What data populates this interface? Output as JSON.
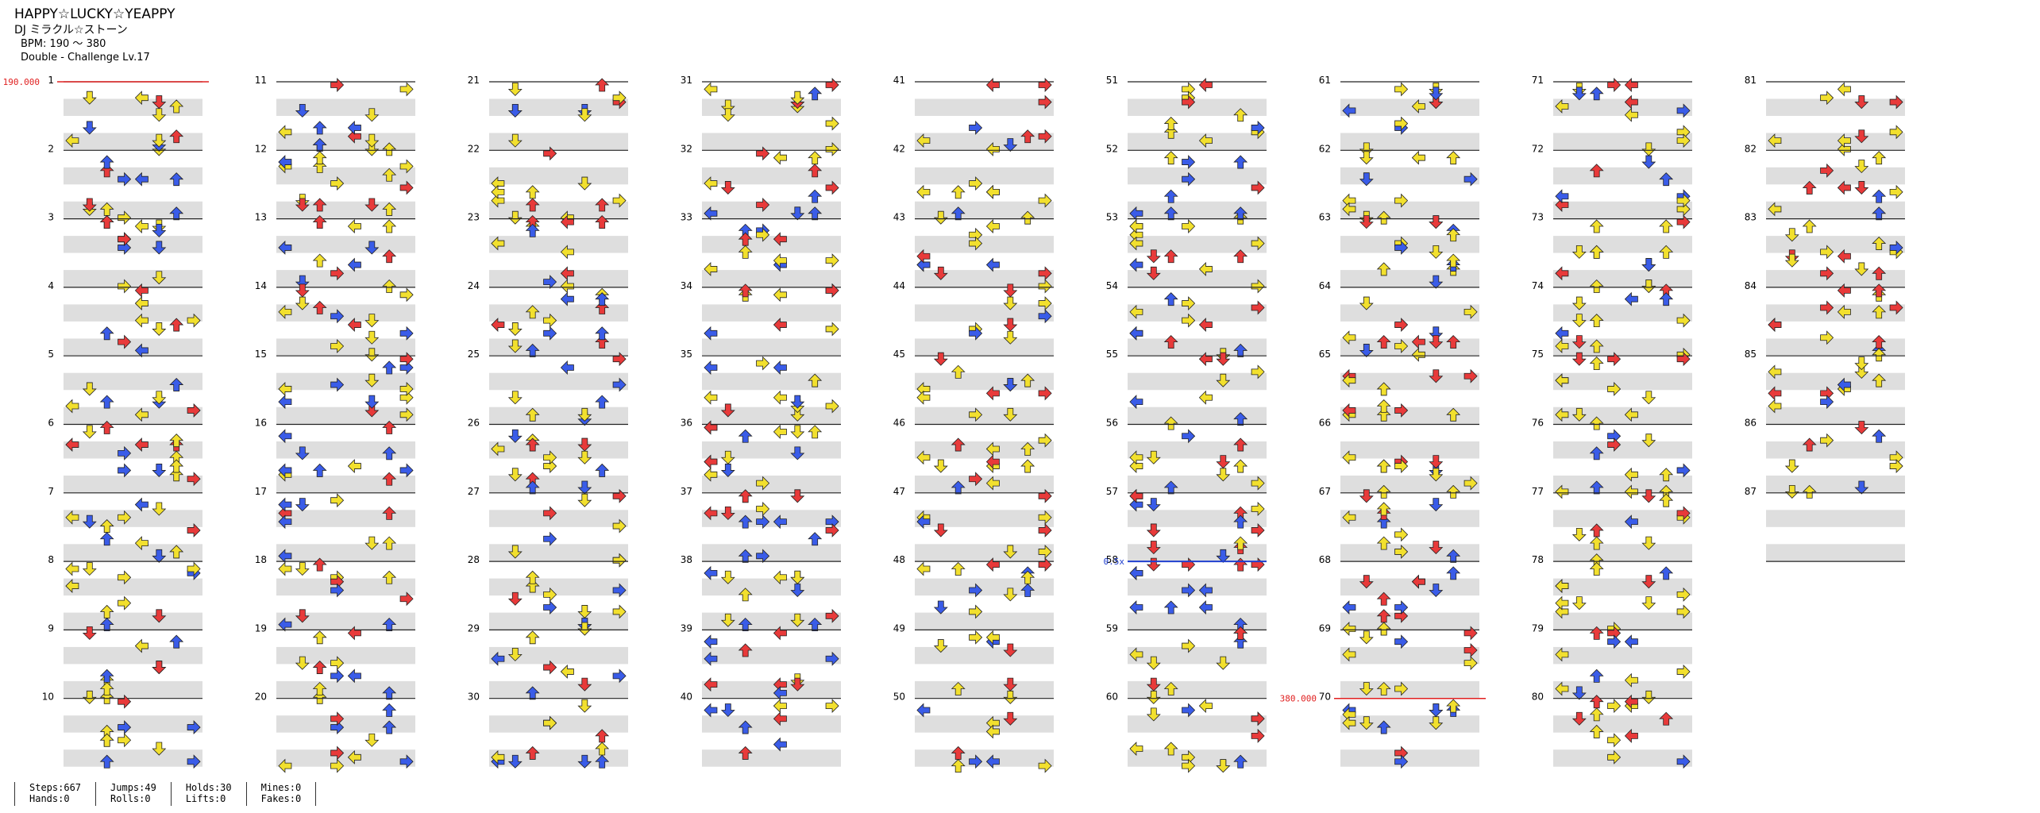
{
  "song": {
    "title": "HAPPY☆LUCKY☆YEAPPY",
    "artist": "DJ ミラクル☆ストーン",
    "bpm": "BPM: 190 ～ 380",
    "difficulty": "Double - Challenge Lv.17"
  },
  "bpm_labels": [
    "190.000",
    "380.000"
  ],
  "speed_label": "0.5x",
  "measures": {
    "first": 1,
    "last": 87,
    "per_column": 10
  },
  "colors": {
    "quarter_note": "#e83a3a",
    "eighth_note": "#3a5ce8",
    "sixteenth_note": "#f2e02e",
    "hold_body": "#7ee07e",
    "bpm_change": "#e02020",
    "speed_change": "#2040d0",
    "band": "#dedede"
  },
  "stats": {
    "groups": [
      [
        "Steps:667",
        "Hands:0"
      ],
      [
        "Jumps:49",
        "Rolls:0"
      ],
      [
        "Holds:30",
        "Lifts:0"
      ],
      [
        "Mines:0",
        "Fakes:0"
      ]
    ]
  }
}
